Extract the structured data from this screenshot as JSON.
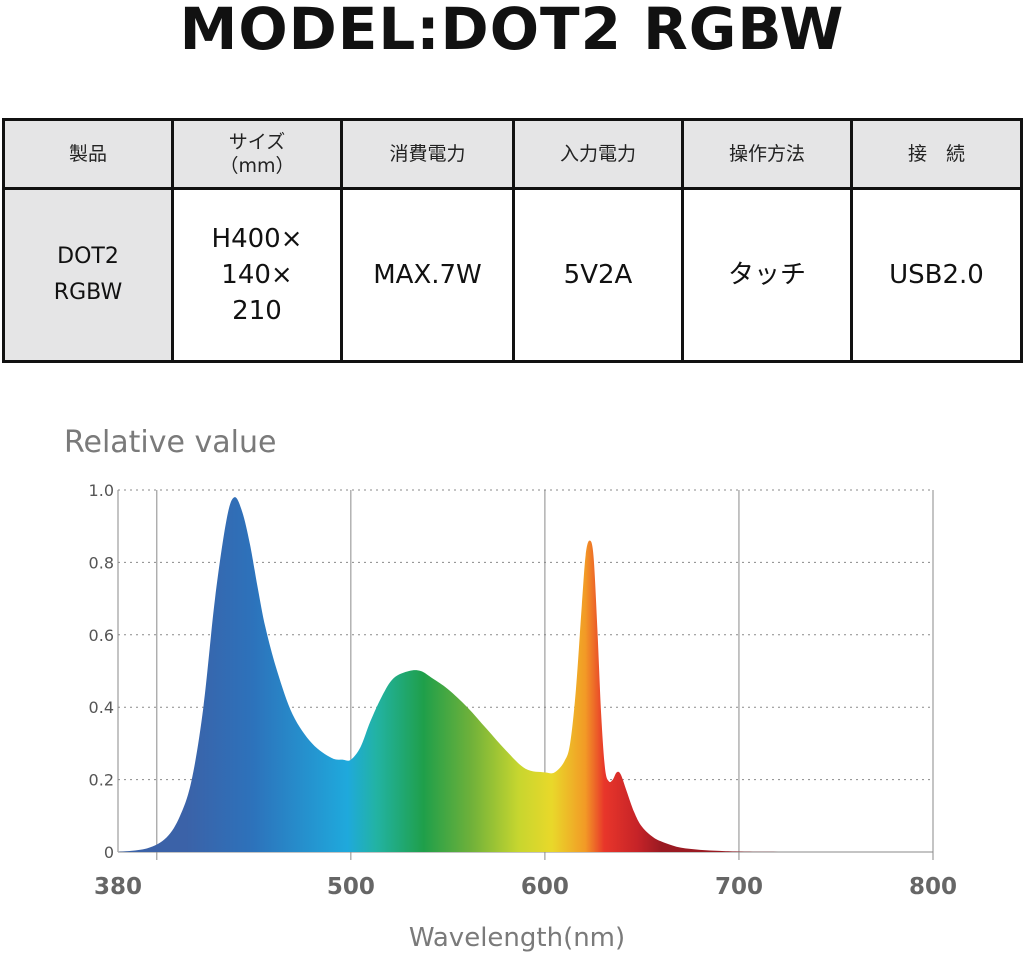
{
  "title": "MODEL:DOT2 RGBW",
  "table": {
    "headers": [
      [
        "製品"
      ],
      [
        "サイズ",
        "（mm）"
      ],
      [
        "消費電力"
      ],
      [
        "入力電力"
      ],
      [
        "操作方法"
      ],
      [
        "接　続"
      ]
    ],
    "row": [
      [
        "DOT2",
        "RGBW"
      ],
      [
        "H400×",
        "140×",
        "210"
      ],
      [
        "MAX.7W"
      ],
      [
        "5V2A"
      ],
      [
        "タッチ"
      ],
      [
        "USB2.0"
      ]
    ]
  },
  "chart_data": {
    "type": "area",
    "ylabel": "Relative value",
    "xlabel": "Wavelength(nm)",
    "xlim": [
      380,
      800
    ],
    "ylim": [
      0,
      1.0
    ],
    "x_ticks": [
      380,
      500,
      600,
      700,
      800
    ],
    "x_tick_labels": [
      "380",
      "500",
      "600",
      "700",
      "800"
    ],
    "y_ticks": [
      0,
      0.2,
      0.4,
      0.6,
      0.8,
      1.0
    ],
    "y_tick_labels": [
      "0",
      "0.2",
      "0.4",
      "0.6",
      "0.8",
      "1.0"
    ],
    "grid": true,
    "series": [
      {
        "x": [
          380,
          395,
          405,
          412,
          418,
          424,
          430,
          436,
          440,
          444,
          448,
          452,
          456,
          462,
          470,
          480,
          490,
          496,
          500,
          505,
          510,
          516,
          522,
          530,
          536,
          542,
          550,
          560,
          570,
          580,
          590,
          600,
          605,
          610,
          613,
          616,
          619,
          621,
          623,
          625,
          627,
          629,
          631,
          633,
          635,
          637,
          639,
          642,
          646,
          650,
          656,
          662,
          670,
          680,
          690,
          700,
          720,
          760,
          800
        ],
        "y": [
          0,
          0.01,
          0.04,
          0.1,
          0.2,
          0.4,
          0.7,
          0.92,
          0.98,
          0.94,
          0.85,
          0.73,
          0.62,
          0.5,
          0.38,
          0.3,
          0.26,
          0.255,
          0.255,
          0.29,
          0.36,
          0.43,
          0.48,
          0.5,
          0.5,
          0.48,
          0.45,
          0.4,
          0.34,
          0.28,
          0.23,
          0.22,
          0.22,
          0.25,
          0.3,
          0.45,
          0.68,
          0.82,
          0.86,
          0.82,
          0.62,
          0.38,
          0.23,
          0.195,
          0.2,
          0.22,
          0.215,
          0.17,
          0.11,
          0.07,
          0.04,
          0.025,
          0.012,
          0.006,
          0.003,
          0.001,
          0.0,
          0.0,
          0.0
        ]
      }
    ]
  },
  "colors": {
    "gradient": [
      "#3b62a8",
      "#2d72bb",
      "#1fa9dc",
      "#22b3a4",
      "#1f9f4a",
      "#6fb13a",
      "#c7d62f",
      "#e9d82a",
      "#f29a26",
      "#e8362a",
      "#c62328",
      "#9a1a22"
    ],
    "grid": "#8a8a8a",
    "axis": "#b0b0b0"
  }
}
